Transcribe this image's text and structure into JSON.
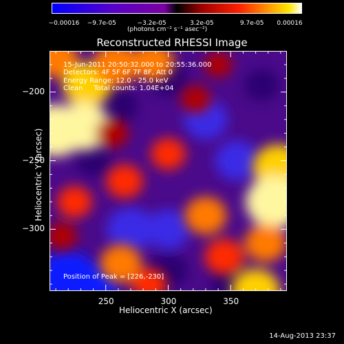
{
  "chart_data": {
    "type": "heatmap",
    "title": "Reconstructed RHESSI Image",
    "xlabel": "Heliocentric X (arcsec)",
    "ylabel": "Heliocentric Y (arcsec)",
    "xlim": [
      205,
      395
    ],
    "ylim": [
      -345,
      -170
    ],
    "x_ticks": [
      "250",
      "300",
      "350"
    ],
    "x_tick_values": [
      250,
      300,
      350
    ],
    "y_ticks": [
      "-200",
      "-250",
      "-300"
    ],
    "y_tick_values": [
      -200,
      -250,
      -300
    ],
    "colorbar": {
      "ticks": [
        "-0.00016",
        "-9.7e-05",
        "-3.2e-05",
        "3.2e-05",
        "9.7e-05",
        "0.00016"
      ],
      "unit_label": "(photons cm⁻² s⁻¹ asec⁻²)",
      "range": [
        -0.00016,
        0.00016
      ]
    },
    "annotations": {
      "time_range": "15-Jun-2011 20:50:32.000 to 20:55:36.000",
      "detectors": "Detectors: 4F 5F 6F 7F 8F, Att 0",
      "energy": "Energy Range: 12.0 - 25.0 keV",
      "method": "Clean     Total counts: 1.04E+04",
      "peak": "Position of Peak = [226,-230]"
    },
    "blobs": [
      {
        "x": 210,
        "y": -175,
        "v": 0.0001
      },
      {
        "x": 235,
        "y": -195,
        "v": 0.00012
      },
      {
        "x": 210,
        "y": -228,
        "v": 0.00016
      },
      {
        "x": 232,
        "y": -225,
        "v": 0.00014
      },
      {
        "x": 258,
        "y": -180,
        "v": 0.00011
      },
      {
        "x": 288,
        "y": -178,
        "v": 9e-05
      },
      {
        "x": 225,
        "y": -280,
        "v": 6e-05
      },
      {
        "x": 265,
        "y": -265,
        "v": 7e-05
      },
      {
        "x": 255,
        "y": -230,
        "v": 5e-05
      },
      {
        "x": 300,
        "y": -245,
        "v": 6e-05
      },
      {
        "x": 262,
        "y": -325,
        "v": 9e-05
      },
      {
        "x": 285,
        "y": -340,
        "v": 6e-05
      },
      {
        "x": 330,
        "y": -290,
        "v": 9e-05
      },
      {
        "x": 345,
        "y": -320,
        "v": 8e-05
      },
      {
        "x": 388,
        "y": -255,
        "v": 0.00013
      },
      {
        "x": 385,
        "y": -280,
        "v": 0.00016
      },
      {
        "x": 378,
        "y": -310,
        "v": 9e-05
      },
      {
        "x": 370,
        "y": -345,
        "v": 0.00012
      },
      {
        "x": 322,
        "y": -205,
        "v": 4e-05
      },
      {
        "x": 215,
        "y": -305,
        "v": 4e-05
      },
      {
        "x": 340,
        "y": -180,
        "v": 3e-05
      }
    ],
    "negative_blobs": [
      {
        "x": 220,
        "y": -335,
        "v": -0.00016
      },
      {
        "x": 238,
        "y": -342,
        "v": -0.00014
      },
      {
        "x": 270,
        "y": -300,
        "v": -0.00012
      },
      {
        "x": 300,
        "y": -300,
        "v": -0.0001
      },
      {
        "x": 330,
        "y": -220,
        "v": -0.0001
      },
      {
        "x": 300,
        "y": -190,
        "v": -8e-05
      },
      {
        "x": 260,
        "y": -210,
        "v": -8e-05
      },
      {
        "x": 355,
        "y": -250,
        "v": -0.0001
      },
      {
        "x": 300,
        "y": -330,
        "v": -8e-05
      },
      {
        "x": 350,
        "y": -340,
        "v": -8e-05
      },
      {
        "x": 240,
        "y": -250,
        "v": -6e-05
      },
      {
        "x": 375,
        "y": -195,
        "v": -6e-05
      }
    ]
  },
  "footer": {
    "timestamp": "14-Aug-2013 23:37"
  }
}
